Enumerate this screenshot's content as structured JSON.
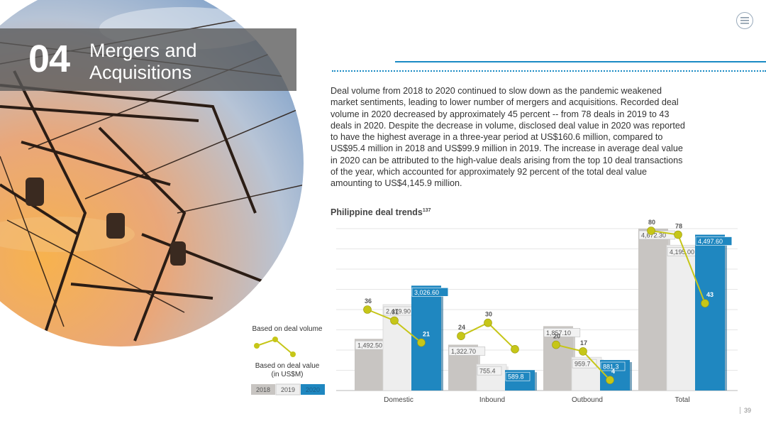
{
  "section": {
    "number": "04",
    "title_line1": "Mergers and",
    "title_line2": "Acquisitions"
  },
  "paragraph": "Deal volume from 2018 to 2020 continued to slow down as the pandemic weakened market sentiments, leading to lower number of mergers and acquisitions. Recorded deal volume in 2020 decreased by approximately 45 percent -- from 78 deals in 2019 to 43 deals in 2020. Despite the decrease in volume, disclosed deal value in 2020 was reported to have the highest average in a three-year period at US$160.6 million, compared to US$95.4 million in 2018 and US$99.9 million in 2019. The increase in average deal value in 2020 can be attributed to the high-value deals arising from the top 10 deal transactions of the year, which accounted for approximately 92 percent of the total deal value amounting to US$4,145.9 million.",
  "chart_title": "Philippine deal trends",
  "chart_title_sup": "137",
  "page_number": "39",
  "legend": {
    "volume_label": "Based on deal volume",
    "value_label_line1": "Based on deal value",
    "value_label_line2": "(in US$M)",
    "years": [
      "2018",
      "2019",
      "2020"
    ]
  },
  "colors": {
    "accent": "#1a8bc4",
    "bar_2018": "#c8c5c2",
    "bar_2019": "#eeeeee",
    "bar_2020": "#1f87c0",
    "volume_line": "#c6c618"
  },
  "chart_data": {
    "type": "bar",
    "title": "Philippine deal trends",
    "categories": [
      "Domestic",
      "Inbound",
      "Outbound",
      "Total"
    ],
    "series": [
      {
        "name": "2018",
        "values": [
          1492.5,
          1322.7,
          1857.1,
          4672.3
        ],
        "labels": [
          "1,492.50",
          "1,322.70",
          "1,857.10",
          "4,672.30"
        ]
      },
      {
        "name": "2019",
        "values": [
          2479.9,
          755.4,
          959.7,
          4195.0
        ],
        "labels": [
          "2,479.90",
          "755.4",
          "959.7",
          "4,195.00"
        ]
      },
      {
        "name": "2020",
        "values": [
          3026.6,
          589.8,
          881.3,
          4497.6
        ],
        "labels": [
          "3,026.60",
          "589.8",
          "881.3",
          "4,497.60"
        ]
      }
    ],
    "volume_series": {
      "type": "line",
      "name": "Based on deal volume",
      "values": [
        [
          36,
          31,
          21
        ],
        [
          24,
          30,
          18
        ],
        [
          20,
          17,
          4
        ],
        [
          80,
          78,
          43
        ]
      ]
    },
    "ylim": [
      0,
      5000
    ],
    "grid": true,
    "xlabel": "",
    "ylabel": ""
  }
}
